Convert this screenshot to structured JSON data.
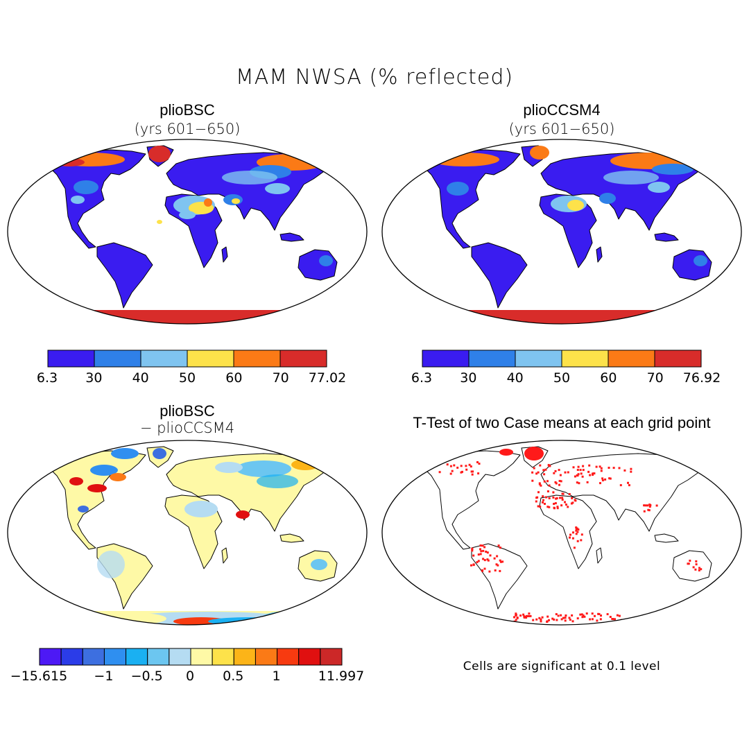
{
  "title": "MAM NWSA (% reflected)",
  "panels": [
    {
      "title": "plioBSC",
      "subtitle": "(yrs 601−650)",
      "colorbar": {
        "labels": [
          "6.3",
          "30",
          "40",
          "50",
          "60",
          "70",
          "77.02"
        ],
        "colors": [
          "#3a1cf0",
          "#2f80e8",
          "#7fc4f0",
          "#fde24a",
          "#fb7a16",
          "#d82c2a"
        ]
      }
    },
    {
      "title": "plioCCSM4",
      "subtitle": "(yrs 601−650)",
      "colorbar": {
        "labels": [
          "6.3",
          "30",
          "40",
          "50",
          "60",
          "70",
          "76.92"
        ],
        "colors": [
          "#3a1cf0",
          "#2f80e8",
          "#7fc4f0",
          "#fde24a",
          "#fb7a16",
          "#d82c2a"
        ]
      }
    },
    {
      "title": "plioBSC",
      "subtitle": "− plioCCSM4",
      "colorbar": {
        "labels": [
          "−15.615",
          "−1",
          "−0.5",
          "0",
          "0.5",
          "1",
          "11.997"
        ],
        "colors": [
          "#4d19f5",
          "#2b3ce8",
          "#3d6fe0",
          "#2f8ff0",
          "#1ab0f2",
          "#6cc6f0",
          "#b5dcf2",
          "#fef9a6",
          "#fde24a",
          "#fcb418",
          "#fb7a16",
          "#f73a10",
          "#e01010",
          "#cc2828"
        ]
      }
    },
    {
      "title": "T-Test of two Case means at each grid point",
      "note": "Cells are significant at 0.1 level",
      "signif_color": "#ff1a1a"
    }
  ]
}
